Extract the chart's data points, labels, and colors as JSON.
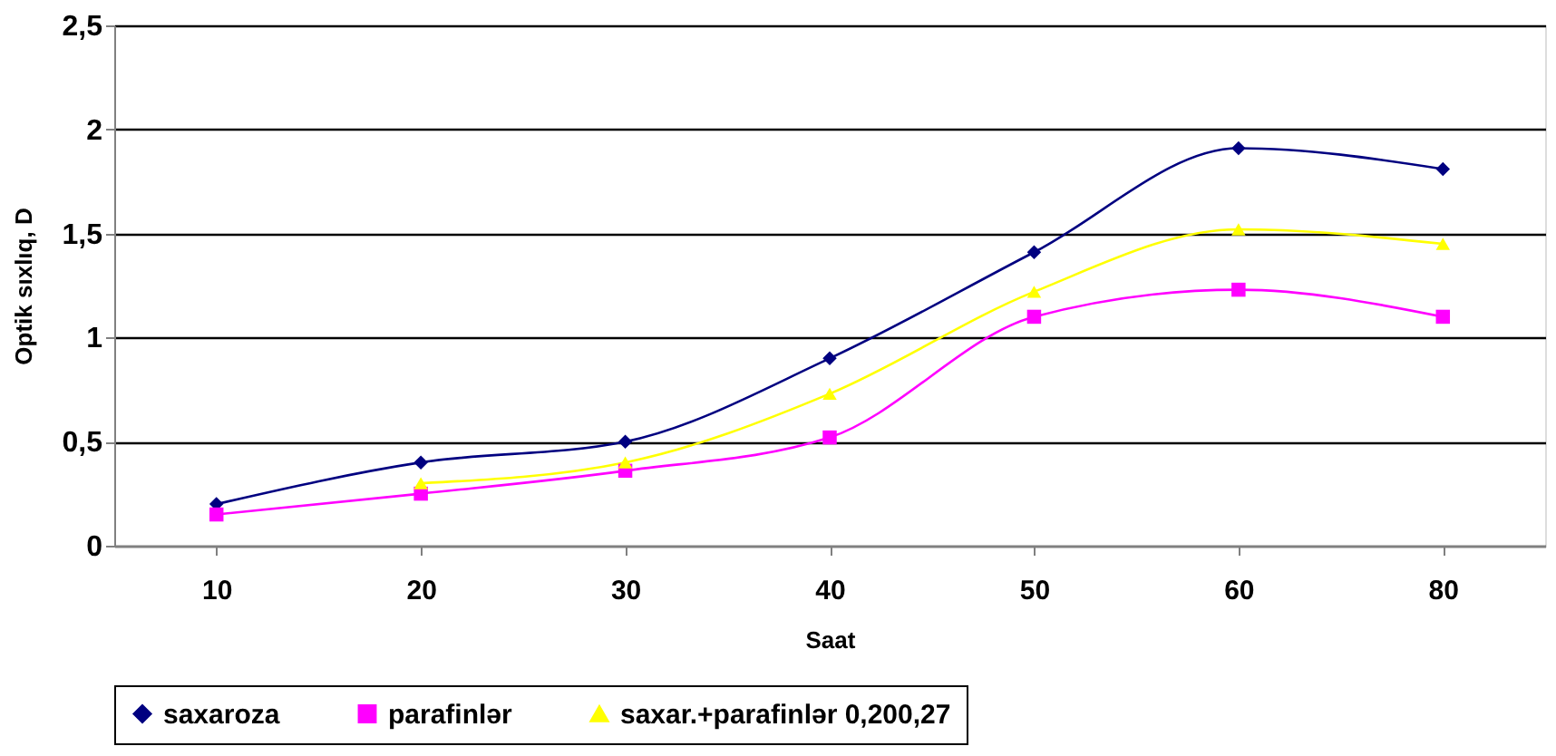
{
  "chart_data": {
    "type": "line",
    "xlabel": "Saat",
    "ylabel": "Optik sıxlıq, D",
    "categories": [
      "10",
      "20",
      "30",
      "40",
      "50",
      "60",
      "80"
    ],
    "series": [
      {
        "name": "saxaroza",
        "color": "#000080",
        "marker": "diamond",
        "values": [
          0.2,
          0.4,
          0.5,
          0.9,
          1.41,
          1.91,
          1.81
        ]
      },
      {
        "name": "parafinlər",
        "color": "#ff00ff",
        "marker": "square",
        "values": [
          0.15,
          0.25,
          0.36,
          0.52,
          1.1,
          1.23,
          1.1
        ]
      },
      {
        "name": "saxar.+parafinlər 0,200,27",
        "color": "#ffff00",
        "marker": "triangle",
        "values": [
          null,
          0.3,
          0.4,
          0.73,
          1.22,
          1.52,
          1.45
        ]
      }
    ],
    "ylim": [
      0,
      2.5
    ],
    "yticks": [
      0,
      {
        "value": 0.5,
        "label": "0,5"
      },
      1,
      {
        "value": 1.5,
        "label": "1,5"
      },
      2,
      {
        "value": 2.5,
        "label": "2,5"
      }
    ],
    "grid": "y",
    "legend": "bottom"
  }
}
